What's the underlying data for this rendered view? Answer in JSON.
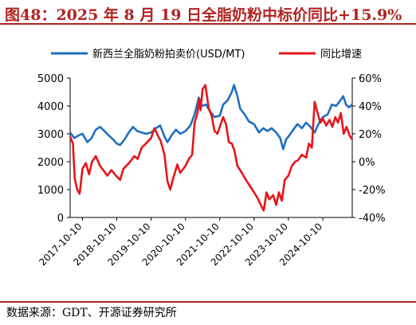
{
  "header": {
    "title": "图48：2025 年 8 月 19 日全脂奶粉中标价同比+15.9%"
  },
  "footer": {
    "source": "数据来源：GDT、开源证券研究所"
  },
  "colors": {
    "accent": "#b22222",
    "series_price": "#1f6fbf",
    "series_yoy": "#e8141a"
  },
  "chart_data": {
    "type": "line",
    "legend_position": "top",
    "grid": false,
    "x_axis": {
      "type": "date",
      "range": [
        "2017-06-01",
        "2025-08-19"
      ],
      "tick_labels": [
        "2017-10-10",
        "2018-10-10",
        "2019-10-10",
        "2020-10-10",
        "2021-10-10",
        "2022-10-10",
        "2023-10-10",
        "2024-10-10"
      ]
    },
    "y_left": {
      "range": [
        0,
        5000
      ],
      "ticks": [
        0,
        1000,
        2000,
        3000,
        4000,
        5000
      ],
      "tick_labels": [
        "0",
        "1000",
        "2000",
        "3000",
        "4000",
        "5000"
      ]
    },
    "y_right": {
      "range": [
        -40,
        60
      ],
      "ticks": [
        -40,
        -20,
        0,
        20,
        40,
        60
      ],
      "tick_labels": [
        "-40%",
        "-20%",
        "0%",
        "20%",
        "40%",
        "60%"
      ],
      "unit": "%"
    },
    "series": [
      {
        "name": "新西兰全脂奶粉拍卖价(USD/MT)",
        "axis": "left",
        "points": [
          [
            "2017-06-01",
            3050
          ],
          [
            "2017-07-15",
            2850
          ],
          [
            "2017-09-01",
            2950
          ],
          [
            "2017-10-10",
            3000
          ],
          [
            "2017-12-01",
            2700
          ],
          [
            "2018-01-15",
            2850
          ],
          [
            "2018-03-01",
            3150
          ],
          [
            "2018-04-15",
            3250
          ],
          [
            "2018-06-01",
            3100
          ],
          [
            "2018-07-15",
            2950
          ],
          [
            "2018-09-01",
            2800
          ],
          [
            "2018-10-10",
            2650
          ],
          [
            "2018-11-15",
            2600
          ],
          [
            "2019-01-01",
            2800
          ],
          [
            "2019-02-15",
            3050
          ],
          [
            "2019-04-01",
            3250
          ],
          [
            "2019-05-15",
            3100
          ],
          [
            "2019-07-01",
            3050
          ],
          [
            "2019-08-15",
            3000
          ],
          [
            "2019-10-10",
            3050
          ],
          [
            "2019-12-01",
            3200
          ],
          [
            "2020-01-15",
            3300
          ],
          [
            "2020-03-01",
            2900
          ],
          [
            "2020-04-01",
            2700
          ],
          [
            "2020-05-15",
            2950
          ],
          [
            "2020-07-01",
            3150
          ],
          [
            "2020-08-15",
            3000
          ],
          [
            "2020-10-10",
            3100
          ],
          [
            "2020-12-01",
            3300
          ],
          [
            "2021-01-15",
            3700
          ],
          [
            "2021-03-01",
            4300
          ],
          [
            "2021-04-01",
            4000
          ],
          [
            "2021-05-15",
            4050
          ],
          [
            "2021-07-01",
            3800
          ],
          [
            "2021-08-15",
            3600
          ],
          [
            "2021-10-10",
            3650
          ],
          [
            "2021-11-15",
            4050
          ],
          [
            "2022-01-01",
            4200
          ],
          [
            "2022-02-15",
            4500
          ],
          [
            "2022-03-10",
            4750
          ],
          [
            "2022-04-15",
            4350
          ],
          [
            "2022-05-15",
            3900
          ],
          [
            "2022-07-01",
            3700
          ],
          [
            "2022-08-15",
            3450
          ],
          [
            "2022-10-10",
            3350
          ],
          [
            "2022-12-01",
            3050
          ],
          [
            "2023-01-15",
            3200
          ],
          [
            "2023-03-01",
            3100
          ],
          [
            "2023-04-15",
            3200
          ],
          [
            "2023-06-01",
            3050
          ],
          [
            "2023-07-15",
            2850
          ],
          [
            "2023-08-15",
            2450
          ],
          [
            "2023-09-15",
            2800
          ],
          [
            "2023-10-10",
            2900
          ],
          [
            "2023-12-01",
            3150
          ],
          [
            "2024-01-15",
            3350
          ],
          [
            "2024-03-01",
            3200
          ],
          [
            "2024-04-15",
            3400
          ],
          [
            "2024-06-01",
            3250
          ],
          [
            "2024-07-15",
            3050
          ],
          [
            "2024-09-01",
            3400
          ],
          [
            "2024-10-10",
            3600
          ],
          [
            "2024-12-01",
            3700
          ],
          [
            "2025-01-15",
            4050
          ],
          [
            "2025-03-01",
            4000
          ],
          [
            "2025-04-15",
            4200
          ],
          [
            "2025-05-15",
            4350
          ],
          [
            "2025-06-15",
            4050
          ],
          [
            "2025-07-15",
            3950
          ],
          [
            "2025-08-19",
            4050
          ]
        ]
      },
      {
        "name": "同比增速",
        "axis": "right",
        "points": [
          [
            "2017-06-01",
            18
          ],
          [
            "2017-07-01",
            13
          ],
          [
            "2017-07-20",
            -12
          ],
          [
            "2017-08-15",
            -20
          ],
          [
            "2017-09-10",
            -23
          ],
          [
            "2017-10-10",
            -5
          ],
          [
            "2017-11-15",
            -1
          ],
          [
            "2017-12-20",
            -9
          ],
          [
            "2018-01-20",
            0
          ],
          [
            "2018-03-01",
            4
          ],
          [
            "2018-04-15",
            -3
          ],
          [
            "2018-05-20",
            -6
          ],
          [
            "2018-07-01",
            -10
          ],
          [
            "2018-08-15",
            -6
          ],
          [
            "2018-10-01",
            -10
          ],
          [
            "2018-11-15",
            -13
          ],
          [
            "2018-12-20",
            -5
          ],
          [
            "2019-01-20",
            -3
          ],
          [
            "2019-03-01",
            0
          ],
          [
            "2019-04-15",
            4
          ],
          [
            "2019-05-20",
            2
          ],
          [
            "2019-07-01",
            10
          ],
          [
            "2019-08-15",
            13
          ],
          [
            "2019-10-10",
            17
          ],
          [
            "2019-11-15",
            24
          ],
          [
            "2019-12-20",
            19
          ],
          [
            "2020-01-20",
            15
          ],
          [
            "2020-03-01",
            5
          ],
          [
            "2020-04-01",
            -14
          ],
          [
            "2020-05-01",
            -20
          ],
          [
            "2020-06-01",
            -12
          ],
          [
            "2020-07-15",
            -2
          ],
          [
            "2020-08-15",
            -8
          ],
          [
            "2020-10-10",
            -3
          ],
          [
            "2020-11-15",
            2
          ],
          [
            "2020-12-20",
            5
          ],
          [
            "2021-01-15",
            28
          ],
          [
            "2021-02-15",
            35
          ],
          [
            "2021-03-05",
            45
          ],
          [
            "2021-03-20",
            37
          ],
          [
            "2021-04-10",
            52
          ],
          [
            "2021-05-10",
            55
          ],
          [
            "2021-06-15",
            38
          ],
          [
            "2021-07-15",
            33
          ],
          [
            "2021-08-15",
            22
          ],
          [
            "2021-09-15",
            20
          ],
          [
            "2021-10-10",
            25
          ],
          [
            "2021-11-15",
            32
          ],
          [
            "2021-12-15",
            27
          ],
          [
            "2022-01-15",
            14
          ],
          [
            "2022-02-15",
            13
          ],
          [
            "2022-03-15",
            8
          ],
          [
            "2022-04-15",
            -3
          ],
          [
            "2022-06-01",
            -8
          ],
          [
            "2022-07-15",
            -13
          ],
          [
            "2022-09-01",
            -18
          ],
          [
            "2022-10-10",
            -22
          ],
          [
            "2022-11-15",
            -26
          ],
          [
            "2022-12-20",
            -31
          ],
          [
            "2023-01-20",
            -35
          ],
          [
            "2023-02-20",
            -22
          ],
          [
            "2023-03-20",
            -27
          ],
          [
            "2023-05-01",
            -24
          ],
          [
            "2023-06-01",
            -31
          ],
          [
            "2023-07-01",
            -22
          ],
          [
            "2023-08-01",
            -28
          ],
          [
            "2023-09-01",
            -13
          ],
          [
            "2023-10-10",
            -10
          ],
          [
            "2023-11-15",
            -3
          ],
          [
            "2023-12-20",
            0
          ],
          [
            "2024-01-20",
            1
          ],
          [
            "2024-03-01",
            5
          ],
          [
            "2024-04-15",
            3
          ],
          [
            "2024-05-15",
            13
          ],
          [
            "2024-06-15",
            10
          ],
          [
            "2024-07-15",
            43
          ],
          [
            "2024-08-15",
            35
          ],
          [
            "2024-09-15",
            28
          ],
          [
            "2024-10-10",
            31
          ],
          [
            "2024-11-15",
            26
          ],
          [
            "2024-12-20",
            30
          ],
          [
            "2025-01-20",
            25
          ],
          [
            "2025-02-20",
            32
          ],
          [
            "2025-03-20",
            28
          ],
          [
            "2025-04-20",
            35
          ],
          [
            "2025-05-20",
            20
          ],
          [
            "2025-06-20",
            25
          ],
          [
            "2025-07-20",
            19
          ],
          [
            "2025-08-19",
            15.9
          ]
        ]
      }
    ]
  }
}
